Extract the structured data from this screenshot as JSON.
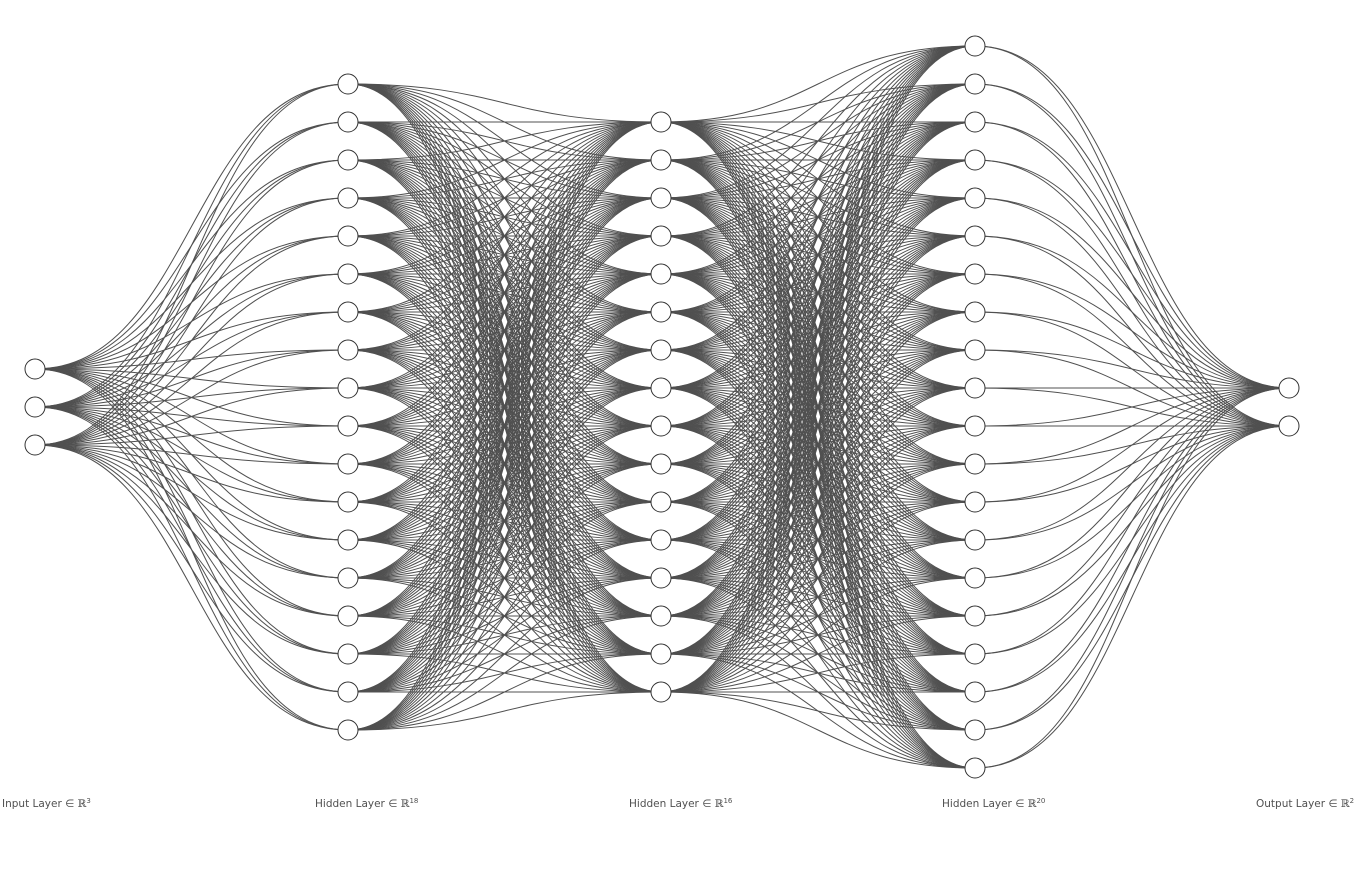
{
  "diagram": {
    "type": "fully-connected neural network",
    "layers": [
      {
        "name": "input",
        "label_text": "Input Layer ∈ ",
        "set_symbol": "ℝ",
        "dim": "3",
        "size": 3
      },
      {
        "name": "hidden1",
        "label_text": "Hidden Layer ∈ ",
        "set_symbol": "ℝ",
        "dim": "18",
        "size": 18
      },
      {
        "name": "hidden2",
        "label_text": "Hidden Layer ∈ ",
        "set_symbol": "ℝ",
        "dim": "16",
        "size": 16
      },
      {
        "name": "hidden3",
        "label_text": "Hidden Layer ∈ ",
        "set_symbol": "ℝ",
        "dim": "20",
        "size": 20
      },
      {
        "name": "output",
        "label_text": "Output Layer ∈ ",
        "set_symbol": "ℝ",
        "dim": "2",
        "size": 2
      }
    ],
    "colors": {
      "edge": "#505050",
      "node_fill": "#ffffff",
      "node_stroke": "#333333",
      "label": "#505050"
    }
  }
}
